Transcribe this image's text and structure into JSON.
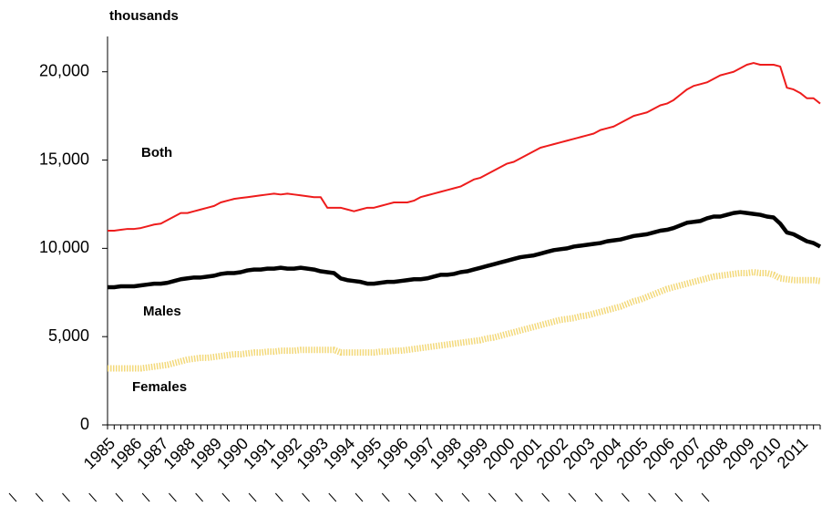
{
  "chart_data": {
    "type": "line",
    "y_axis_label": "thousands",
    "categories": [
      "1985",
      null,
      null,
      null,
      "1986",
      null,
      null,
      null,
      "1987",
      null,
      null,
      null,
      "1988",
      null,
      null,
      null,
      "1989",
      null,
      null,
      null,
      "1990",
      null,
      null,
      null,
      "1991",
      null,
      null,
      null,
      "1992",
      null,
      null,
      null,
      "1993",
      null,
      null,
      null,
      "1994",
      null,
      null,
      null,
      "1995",
      null,
      null,
      null,
      "1996",
      null,
      null,
      null,
      "1997",
      null,
      null,
      null,
      "1998",
      null,
      null,
      null,
      "1999",
      null,
      null,
      null,
      "2000",
      null,
      null,
      null,
      "2001",
      null,
      null,
      null,
      "2002",
      null,
      null,
      null,
      "2003",
      null,
      null,
      null,
      "2004",
      null,
      null,
      null,
      "2005",
      null,
      null,
      null,
      "2006",
      null,
      null,
      null,
      "2007",
      null,
      null,
      null,
      "2008",
      null,
      null,
      null,
      "2009",
      null,
      null,
      null,
      "2010",
      null,
      null,
      null,
      "2011",
      null,
      null,
      null
    ],
    "series": [
      {
        "name": "Both",
        "color": "#ee1c1c",
        "values": [
          11000,
          11000,
          11050,
          11100,
          11100,
          11150,
          11250,
          11350,
          11400,
          11600,
          11800,
          12000,
          12000,
          12100,
          12200,
          12300,
          12400,
          12600,
          12700,
          12800,
          12850,
          12900,
          12950,
          13000,
          13050,
          13100,
          13050,
          13100,
          13050,
          13000,
          12950,
          12900,
          12900,
          12300,
          12300,
          12300,
          12200,
          12100,
          12200,
          12300,
          12300,
          12400,
          12500,
          12600,
          12600,
          12600,
          12700,
          12900,
          13000,
          13100,
          13200,
          13300,
          13400,
          13500,
          13700,
          13900,
          14000,
          14200,
          14400,
          14600,
          14800,
          14900,
          15100,
          15300,
          15500,
          15700,
          15800,
          15900,
          16000,
          16100,
          16200,
          16300,
          16400,
          16500,
          16700,
          16800,
          16900,
          17100,
          17300,
          17500,
          17600,
          17700,
          17900,
          18100,
          18200,
          18400,
          18700,
          19000,
          19200,
          19300,
          19400,
          19600,
          19800,
          19900,
          20000,
          20200,
          20400,
          20500,
          20400,
          20400,
          20400,
          20300,
          19100,
          19000,
          18800,
          18500,
          18500,
          18200
        ]
      },
      {
        "name": "Males",
        "color": "#000000",
        "values": [
          7800,
          7800,
          7850,
          7850,
          7850,
          7900,
          7950,
          8000,
          8000,
          8050,
          8150,
          8250,
          8300,
          8350,
          8350,
          8400,
          8450,
          8550,
          8600,
          8600,
          8650,
          8750,
          8800,
          8800,
          8850,
          8850,
          8900,
          8850,
          8850,
          8900,
          8850,
          8800,
          8700,
          8650,
          8600,
          8300,
          8200,
          8150,
          8100,
          8000,
          8000,
          8050,
          8100,
          8100,
          8150,
          8200,
          8250,
          8250,
          8300,
          8400,
          8500,
          8500,
          8550,
          8650,
          8700,
          8800,
          8900,
          9000,
          9100,
          9200,
          9300,
          9400,
          9500,
          9550,
          9600,
          9700,
          9800,
          9900,
          9950,
          10000,
          10100,
          10150,
          10200,
          10250,
          10300,
          10400,
          10450,
          10500,
          10600,
          10700,
          10750,
          10800,
          10900,
          11000,
          11050,
          11150,
          11300,
          11450,
          11500,
          11550,
          11700,
          11800,
          11800,
          11900,
          12000,
          12050,
          12000,
          11950,
          11900,
          11800,
          11750,
          11400,
          10900,
          10800,
          10600,
          10400,
          10300,
          10100
        ]
      },
      {
        "name": "Females",
        "color": "#f3d97a",
        "values": [
          3200,
          3200,
          3200,
          3200,
          3200,
          3200,
          3250,
          3300,
          3350,
          3400,
          3500,
          3600,
          3700,
          3750,
          3800,
          3800,
          3850,
          3900,
          3950,
          4000,
          4000,
          4050,
          4100,
          4100,
          4150,
          4150,
          4200,
          4200,
          4200,
          4250,
          4250,
          4250,
          4250,
          4250,
          4250,
          4100,
          4100,
          4100,
          4100,
          4100,
          4100,
          4150,
          4150,
          4200,
          4200,
          4250,
          4300,
          4350,
          4400,
          4450,
          4500,
          4550,
          4600,
          4650,
          4700,
          4750,
          4800,
          4900,
          4950,
          5050,
          5150,
          5250,
          5350,
          5450,
          5550,
          5650,
          5750,
          5850,
          5950,
          6000,
          6050,
          6150,
          6200,
          6300,
          6400,
          6500,
          6600,
          6700,
          6850,
          7000,
          7100,
          7250,
          7400,
          7550,
          7700,
          7800,
          7900,
          8000,
          8100,
          8200,
          8300,
          8400,
          8450,
          8500,
          8550,
          8600,
          8600,
          8650,
          8600,
          8600,
          8500,
          8300,
          8250,
          8200,
          8200,
          8200,
          8200,
          8150
        ]
      }
    ],
    "ylim": [
      0,
      22000
    ],
    "yticks": [
      0,
      {
        "value": 5000,
        "label": "5,000"
      },
      {
        "value": 10000,
        "label": "10,000"
      },
      {
        "value": 15000,
        "label": "15,000"
      },
      {
        "value": 20000,
        "label": "20,000"
      }
    ]
  }
}
